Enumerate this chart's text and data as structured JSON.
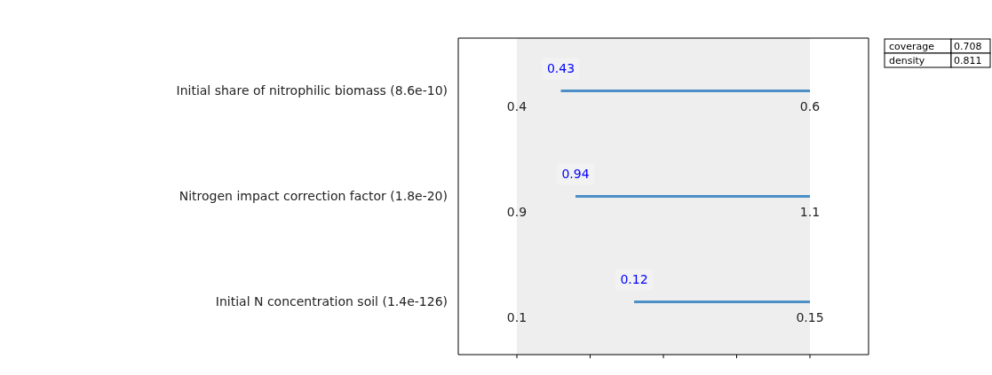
{
  "chart_data": [
    {
      "type": "bar",
      "orientation": "horizontal",
      "categories": [
        "Initial share of nitrophilic biomass (8.6e-10)"
      ],
      "base": [
        0.43
      ],
      "values": [
        0.17
      ],
      "color": "#4b8fc6",
      "xlim": [
        0.36,
        0.64
      ],
      "xticks": [
        0.4,
        0.6
      ],
      "bands": [
        {
          "axis": "x",
          "from": 0.4,
          "to": 0.6,
          "color": "#eeeeee"
        }
      ],
      "annotations": [
        {
          "text": "0.43",
          "x": 0.43,
          "y": "Initial share of nitrophilic biomass (8.6e-10)"
        }
      ]
    },
    {
      "type": "bar",
      "orientation": "horizontal",
      "categories": [
        "Nitrogen impact correction factor (1.8e-20)"
      ],
      "base": [
        0.94
      ],
      "values": [
        0.16
      ],
      "color": "#4b8fc6",
      "xlim": [
        0.86,
        1.14
      ],
      "xticks": [
        0.9,
        1.1
      ],
      "bands": [
        {
          "axis": "x",
          "from": 0.9,
          "to": 1.1,
          "color": "#eeeeee"
        }
      ],
      "annotations": [
        {
          "text": "0.94",
          "x": 0.94,
          "y": "Nitrogen impact correction factor (1.8e-20)"
        }
      ]
    },
    {
      "type": "bar",
      "orientation": "horizontal",
      "categories": [
        "Initial N concentration soil (1.4e-126)"
      ],
      "base": [
        0.12
      ],
      "values": [
        0.03
      ],
      "color": "#4b8fc6",
      "xlim": [
        0.09,
        0.16
      ],
      "xticks": [
        0.1,
        {
          "value": 0.1125,
          "label": null
        },
        {
          "value": 0.125,
          "label": null
        },
        {
          "value": 0.1375,
          "label": null
        },
        0.15
      ],
      "bands": [
        {
          "axis": "x",
          "from": 0.1,
          "to": 0.15,
          "color": "#eeeeee"
        }
      ],
      "annotations": [
        {
          "text": "0.12",
          "x": 0.12,
          "y": "Initial N concentration soil (1.4e-126)"
        }
      ]
    },
    {
      "type": "other",
      "annotations": [
        "coverage",
        "0.708",
        "density",
        "0.811"
      ]
    }
  ]
}
